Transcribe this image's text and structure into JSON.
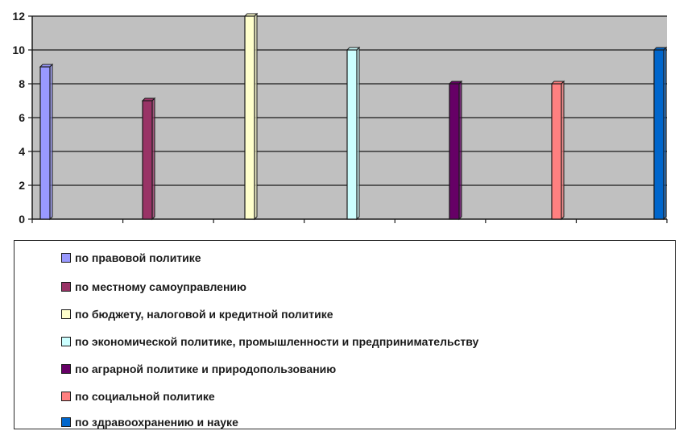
{
  "chart_data": {
    "type": "bar",
    "categories": [
      "по правовой политике",
      "по местному самоуправлению",
      "по бюджету, налоговой и кредитной политике",
      "по экономической политике, промышленности и предпринимательству",
      "по аграрной политике и природопользованию",
      "по социальной политике",
      "по здравоохранению и науке"
    ],
    "values": [
      9,
      7,
      12,
      10,
      8,
      8,
      10
    ],
    "colors": [
      "#9999ff",
      "#993366",
      "#ffffcc",
      "#ccffff",
      "#660066",
      "#ff8080",
      "#0066cc"
    ],
    "plot_background": "#c0c0c0",
    "ylim": [
      0,
      12
    ],
    "yticks": [
      "0",
      "2",
      "4",
      "6",
      "8",
      "10",
      "12"
    ],
    "grid": true,
    "legend_position": "bottom",
    "title": "",
    "xlabel": "",
    "ylabel": ""
  }
}
